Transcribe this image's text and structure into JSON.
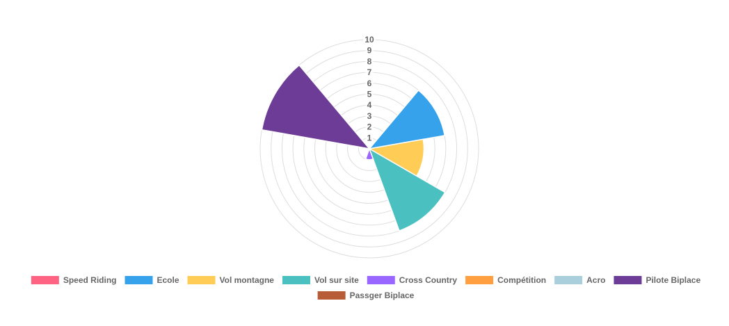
{
  "chart_data": {
    "type": "polarArea",
    "title": "",
    "r_ticks": [
      "1",
      "2",
      "3",
      "4",
      "5",
      "6",
      "7",
      "8",
      "9",
      "10"
    ],
    "r_max": 10,
    "grid": true,
    "legend_position": "bottom",
    "categories": [
      "Speed Riding",
      "Ecole",
      "Vol montagne",
      "Vol sur site",
      "Cross Country",
      "Compétition",
      "Acro",
      "Pilote Biplace",
      "Passger Biplace"
    ],
    "values": [
      0,
      7,
      5,
      8,
      1,
      0,
      0,
      10,
      0
    ],
    "colors": [
      "#ff6384",
      "#36a2eb",
      "#ffcd56",
      "#4bc0c0",
      "#9966ff",
      "#ff9f40",
      "#a9cfdc",
      "#6c3c96",
      "#b85c38"
    ]
  }
}
